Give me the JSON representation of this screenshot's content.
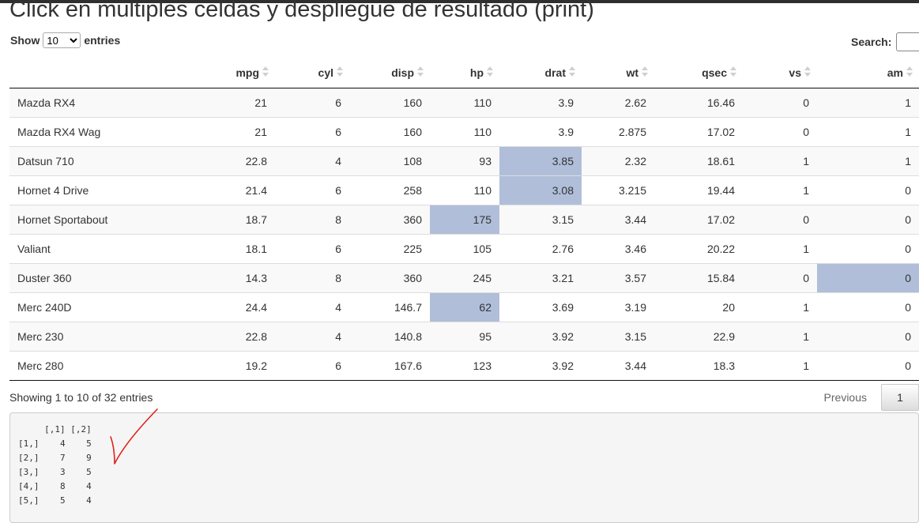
{
  "page": {
    "title": "Click en multiples celdas y despliegue de resultado (print)"
  },
  "length_menu": {
    "show_label": "Show",
    "selected": "10",
    "entries_label": "entries"
  },
  "search": {
    "label": "Search:",
    "value": ""
  },
  "table": {
    "columns": [
      "",
      "mpg",
      "cyl",
      "disp",
      "hp",
      "drat",
      "wt",
      "qsec",
      "vs",
      "am"
    ],
    "rows": [
      [
        "Mazda RX4",
        "21",
        "6",
        "160",
        "110",
        "3.9",
        "2.62",
        "16.46",
        "0",
        "1"
      ],
      [
        "Mazda RX4 Wag",
        "21",
        "6",
        "160",
        "110",
        "3.9",
        "2.875",
        "17.02",
        "0",
        "1"
      ],
      [
        "Datsun 710",
        "22.8",
        "4",
        "108",
        "93",
        "3.85",
        "2.32",
        "18.61",
        "1",
        "1"
      ],
      [
        "Hornet 4 Drive",
        "21.4",
        "6",
        "258",
        "110",
        "3.08",
        "3.215",
        "19.44",
        "1",
        "0"
      ],
      [
        "Hornet Sportabout",
        "18.7",
        "8",
        "360",
        "175",
        "3.15",
        "3.44",
        "17.02",
        "0",
        "0"
      ],
      [
        "Valiant",
        "18.1",
        "6",
        "225",
        "105",
        "2.76",
        "3.46",
        "20.22",
        "1",
        "0"
      ],
      [
        "Duster 360",
        "14.3",
        "8",
        "360",
        "245",
        "3.21",
        "3.57",
        "15.84",
        "0",
        "0"
      ],
      [
        "Merc 240D",
        "24.4",
        "4",
        "146.7",
        "62",
        "3.69",
        "3.19",
        "20",
        "1",
        "0"
      ],
      [
        "Merc 230",
        "22.8",
        "4",
        "140.8",
        "95",
        "3.92",
        "3.15",
        "22.9",
        "1",
        "0"
      ],
      [
        "Merc 280",
        "19.2",
        "6",
        "167.6",
        "123",
        "3.92",
        "3.44",
        "18.3",
        "1",
        "0"
      ]
    ],
    "selected_cells": [
      [
        3,
        5
      ],
      [
        4,
        5
      ],
      [
        5,
        4
      ],
      [
        7,
        9
      ],
      [
        8,
        4
      ]
    ],
    "selected_color": "#b0bed9"
  },
  "footer": {
    "info": "Showing 1 to 10 of 32 entries",
    "previous_label": "Previous",
    "current_page": "1"
  },
  "output": {
    "text": "     [,1] [,2]\n[1,]    4    5\n[2,]    7    9\n[3,]    3    5\n[4,]    8    4\n[5,]    5    4"
  },
  "annotation": {
    "icon": "checkmark-icon",
    "color": "#e0201b"
  }
}
